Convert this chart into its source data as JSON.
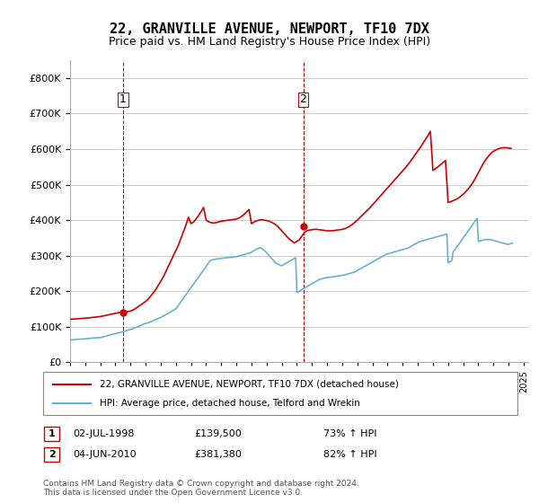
{
  "title": "22, GRANVILLE AVENUE, NEWPORT, TF10 7DX",
  "subtitle": "Price paid vs. HM Land Registry's House Price Index (HPI)",
  "hpi_color": "#6baed6",
  "price_color": "#cc0000",
  "annotation_color": "#cc0000",
  "dashed_color": "#cc0000",
  "background_color": "#ffffff",
  "grid_color": "#cccccc",
  "legend_label_price": "22, GRANVILLE AVENUE, NEWPORT, TF10 7DX (detached house)",
  "legend_label_hpi": "HPI: Average price, detached house, Telford and Wrekin",
  "footer": "Contains HM Land Registry data © Crown copyright and database right 2024.\nThis data is licensed under the Open Government Licence v3.0.",
  "transactions": [
    {
      "num": 1,
      "date": "02-JUL-1998",
      "price": 139500,
      "pct": "73%",
      "direction": "↑",
      "year": 1998.5
    },
    {
      "num": 2,
      "date": "04-JUN-2010",
      "price": 381380,
      "pct": "82%",
      "direction": "↑",
      "year": 2010.42
    }
  ],
  "ylim": [
    0,
    850000
  ],
  "yticks": [
    0,
    100000,
    200000,
    300000,
    400000,
    500000,
    600000,
    700000,
    800000
  ],
  "hpi_data": {
    "years": [
      1995.0,
      1995.08,
      1995.17,
      1995.25,
      1995.33,
      1995.42,
      1995.5,
      1995.58,
      1995.67,
      1995.75,
      1995.83,
      1995.92,
      1996.0,
      1996.08,
      1996.17,
      1996.25,
      1996.33,
      1996.42,
      1996.5,
      1996.58,
      1996.67,
      1996.75,
      1996.83,
      1996.92,
      1997.0,
      1997.08,
      1997.17,
      1997.25,
      1997.33,
      1997.42,
      1997.5,
      1997.58,
      1997.67,
      1997.75,
      1997.83,
      1997.92,
      1998.0,
      1998.08,
      1998.17,
      1998.25,
      1998.33,
      1998.42,
      1998.5,
      1998.58,
      1998.67,
      1998.75,
      1998.83,
      1998.92,
      1999.0,
      1999.08,
      1999.17,
      1999.25,
      1999.33,
      1999.42,
      1999.5,
      1999.58,
      1999.67,
      1999.75,
      1999.83,
      1999.92,
      2000.0,
      2000.08,
      2000.17,
      2000.25,
      2000.33,
      2000.42,
      2000.5,
      2000.58,
      2000.67,
      2000.75,
      2000.83,
      2000.92,
      2001.0,
      2001.08,
      2001.17,
      2001.25,
      2001.33,
      2001.42,
      2001.5,
      2001.58,
      2001.67,
      2001.75,
      2001.83,
      2001.92,
      2002.0,
      2002.08,
      2002.17,
      2002.25,
      2002.33,
      2002.42,
      2002.5,
      2002.58,
      2002.67,
      2002.75,
      2002.83,
      2002.92,
      2003.0,
      2003.08,
      2003.17,
      2003.25,
      2003.33,
      2003.42,
      2003.5,
      2003.58,
      2003.67,
      2003.75,
      2003.83,
      2003.92,
      2004.0,
      2004.08,
      2004.17,
      2004.25,
      2004.33,
      2004.42,
      2004.5,
      2004.58,
      2004.67,
      2004.75,
      2004.83,
      2004.92,
      2005.0,
      2005.08,
      2005.17,
      2005.25,
      2005.33,
      2005.42,
      2005.5,
      2005.58,
      2005.67,
      2005.75,
      2005.83,
      2005.92,
      2006.0,
      2006.08,
      2006.17,
      2006.25,
      2006.33,
      2006.42,
      2006.5,
      2006.58,
      2006.67,
      2006.75,
      2006.83,
      2006.92,
      2007.0,
      2007.08,
      2007.17,
      2007.25,
      2007.33,
      2007.42,
      2007.5,
      2007.58,
      2007.67,
      2007.75,
      2007.83,
      2007.92,
      2008.0,
      2008.08,
      2008.17,
      2008.25,
      2008.33,
      2008.42,
      2008.5,
      2008.58,
      2008.67,
      2008.75,
      2008.83,
      2008.92,
      2009.0,
      2009.08,
      2009.17,
      2009.25,
      2009.33,
      2009.42,
      2009.5,
      2009.58,
      2009.67,
      2009.75,
      2009.83,
      2009.92,
      2010.0,
      2010.08,
      2010.17,
      2010.25,
      2010.33,
      2010.42,
      2010.5,
      2010.58,
      2010.67,
      2010.75,
      2010.83,
      2010.92,
      2011.0,
      2011.08,
      2011.17,
      2011.25,
      2011.33,
      2011.42,
      2011.5,
      2011.58,
      2011.67,
      2011.75,
      2011.83,
      2011.92,
      2012.0,
      2012.08,
      2012.17,
      2012.25,
      2012.33,
      2012.42,
      2012.5,
      2012.58,
      2012.67,
      2012.75,
      2012.83,
      2012.92,
      2013.0,
      2013.08,
      2013.17,
      2013.25,
      2013.33,
      2013.42,
      2013.5,
      2013.58,
      2013.67,
      2013.75,
      2013.83,
      2013.92,
      2014.0,
      2014.08,
      2014.17,
      2014.25,
      2014.33,
      2014.42,
      2014.5,
      2014.58,
      2014.67,
      2014.75,
      2014.83,
      2014.92,
      2015.0,
      2015.08,
      2015.17,
      2015.25,
      2015.33,
      2015.42,
      2015.5,
      2015.58,
      2015.67,
      2015.75,
      2015.83,
      2015.92,
      2016.0,
      2016.08,
      2016.17,
      2016.25,
      2016.33,
      2016.42,
      2016.5,
      2016.58,
      2016.67,
      2016.75,
      2016.83,
      2016.92,
      2017.0,
      2017.08,
      2017.17,
      2017.25,
      2017.33,
      2017.42,
      2017.5,
      2017.58,
      2017.67,
      2017.75,
      2017.83,
      2017.92,
      2018.0,
      2018.08,
      2018.17,
      2018.25,
      2018.33,
      2018.42,
      2018.5,
      2018.58,
      2018.67,
      2018.75,
      2018.83,
      2018.92,
      2019.0,
      2019.08,
      2019.17,
      2019.25,
      2019.33,
      2019.42,
      2019.5,
      2019.58,
      2019.67,
      2019.75,
      2019.83,
      2019.92,
      2020.0,
      2020.08,
      2020.17,
      2020.25,
      2020.33,
      2020.42,
      2020.5,
      2020.58,
      2020.67,
      2020.75,
      2020.83,
      2020.92,
      2021.0,
      2021.08,
      2021.17,
      2021.25,
      2021.33,
      2021.42,
      2021.5,
      2021.58,
      2021.67,
      2021.75,
      2021.83,
      2021.92,
      2022.0,
      2022.08,
      2022.17,
      2022.25,
      2022.33,
      2022.42,
      2022.5,
      2022.58,
      2022.67,
      2022.75,
      2022.83,
      2022.92,
      2023.0,
      2023.08,
      2023.17,
      2023.25,
      2023.33,
      2023.42,
      2023.5,
      2023.58,
      2023.67,
      2023.75,
      2023.83,
      2023.92,
      2024.0,
      2024.08,
      2024.17,
      2024.25
    ],
    "values": [
      62000,
      62500,
      63000,
      63500,
      64000,
      64200,
      64400,
      64600,
      64800,
      65000,
      65200,
      65400,
      65600,
      66000,
      66400,
      66800,
      67200,
      67600,
      68000,
      68200,
      68400,
      68600,
      68800,
      69000,
      69200,
      70000,
      71000,
      72000,
      73000,
      74000,
      75000,
      76000,
      77000,
      78000,
      79000,
      80000,
      80500,
      81000,
      82000,
      83000,
      84000,
      85000,
      86000,
      87000,
      88000,
      89000,
      90000,
      91000,
      92000,
      93000,
      94500,
      96000,
      97500,
      99000,
      100500,
      102000,
      103500,
      105000,
      106500,
      108000,
      109000,
      110000,
      111000,
      112500,
      114000,
      115500,
      117000,
      118500,
      120000,
      121500,
      123000,
      124500,
      126000,
      128000,
      130000,
      132000,
      134000,
      136000,
      138000,
      140000,
      142000,
      144000,
      146000,
      148000,
      150000,
      155000,
      160000,
      165000,
      170000,
      175000,
      180000,
      185000,
      190000,
      195000,
      200000,
      205000,
      210000,
      215000,
      220000,
      225000,
      230000,
      235000,
      240000,
      245000,
      250000,
      255000,
      260000,
      265000,
      270000,
      275000,
      280000,
      285000,
      287000,
      288000,
      289000,
      290000,
      290500,
      291000,
      291500,
      292000,
      292000,
      292500,
      293000,
      293500,
      294000,
      294500,
      295000,
      295000,
      295000,
      295500,
      296000,
      296500,
      297000,
      298000,
      299000,
      300000,
      301000,
      302000,
      303000,
      304000,
      305000,
      306000,
      307000,
      308000,
      310000,
      312000,
      314000,
      316000,
      318000,
      320000,
      322000,
      322000,
      320000,
      318000,
      315000,
      312000,
      308000,
      304000,
      300000,
      296000,
      292000,
      288000,
      284000,
      280000,
      278000,
      276000,
      274000,
      272000,
      272000,
      274000,
      276000,
      278000,
      280000,
      282000,
      284000,
      286000,
      288000,
      290000,
      292000,
      294000,
      196000,
      198000,
      200000,
      202000,
      205000,
      207000,
      209000,
      211000,
      213000,
      215000,
      217000,
      219000,
      221000,
      223000,
      225000,
      227000,
      229000,
      231000,
      233000,
      234000,
      235000,
      236000,
      237000,
      238000,
      238000,
      238500,
      239000,
      239500,
      240000,
      240500,
      241000,
      241500,
      242000,
      242500,
      243000,
      243500,
      244000,
      245000,
      246000,
      247000,
      248000,
      249000,
      250000,
      251000,
      252000,
      253000,
      254000,
      256000,
      258000,
      260000,
      262000,
      264000,
      266000,
      268000,
      270000,
      272000,
      274000,
      276000,
      278000,
      280000,
      282000,
      284000,
      286000,
      288000,
      290000,
      292000,
      294000,
      296000,
      298000,
      300000,
      302000,
      304000,
      305000,
      306000,
      307000,
      308000,
      309000,
      310000,
      311000,
      312000,
      313000,
      314000,
      315000,
      316000,
      317000,
      318000,
      319000,
      320000,
      321000,
      323000,
      325000,
      327000,
      329000,
      331000,
      333000,
      335000,
      337000,
      339000,
      340000,
      341000,
      342000,
      343000,
      344000,
      345000,
      346000,
      347000,
      348000,
      349000,
      350000,
      351000,
      352000,
      353000,
      354000,
      355000,
      356000,
      357000,
      358000,
      359000,
      360000,
      361000,
      280000,
      282000,
      284000,
      286000,
      310000,
      315000,
      320000,
      325000,
      330000,
      335000,
      340000,
      345000,
      350000,
      355000,
      360000,
      365000,
      370000,
      375000,
      380000,
      385000,
      390000,
      395000,
      400000,
      405000,
      340000,
      341000,
      342000,
      343000,
      344000,
      345000,
      345000,
      345000,
      345000,
      345000,
      345000,
      344000,
      343000,
      342000,
      341000,
      340000,
      339000,
      338000,
      337000,
      336000,
      335000,
      334000,
      333000,
      332000,
      332000,
      333000,
      334000,
      335000
    ]
  },
  "price_hpi_data": {
    "years": [
      1995.0,
      1995.17,
      1995.33,
      1995.5,
      1995.67,
      1995.83,
      1996.0,
      1996.17,
      1996.33,
      1996.5,
      1996.67,
      1996.83,
      1997.0,
      1997.17,
      1997.33,
      1997.5,
      1997.67,
      1997.83,
      1998.0,
      1998.17,
      1998.33,
      1998.5,
      1998.67,
      1998.83,
      1999.0,
      1999.17,
      1999.33,
      1999.5,
      1999.67,
      1999.83,
      2000.0,
      2000.17,
      2000.33,
      2000.5,
      2000.67,
      2000.83,
      2001.0,
      2001.17,
      2001.33,
      2001.5,
      2001.67,
      2001.83,
      2002.0,
      2002.17,
      2002.33,
      2002.5,
      2002.67,
      2002.83,
      2003.0,
      2003.17,
      2003.33,
      2003.5,
      2003.67,
      2003.83,
      2004.0,
      2004.17,
      2004.33,
      2004.5,
      2004.67,
      2004.83,
      2005.0,
      2005.17,
      2005.33,
      2005.5,
      2005.67,
      2005.83,
      2006.0,
      2006.17,
      2006.33,
      2006.5,
      2006.67,
      2006.83,
      2007.0,
      2007.17,
      2007.33,
      2007.5,
      2007.67,
      2007.83,
      2008.0,
      2008.17,
      2008.33,
      2008.5,
      2008.67,
      2008.83,
      2009.0,
      2009.17,
      2009.33,
      2009.5,
      2009.67,
      2009.83,
      2010.0,
      2010.17,
      2010.33,
      2010.5,
      2010.67,
      2010.83,
      2011.0,
      2011.17,
      2011.33,
      2011.5,
      2011.67,
      2011.83,
      2012.0,
      2012.17,
      2012.33,
      2012.5,
      2012.67,
      2012.83,
      2013.0,
      2013.17,
      2013.33,
      2013.5,
      2013.67,
      2013.83,
      2014.0,
      2014.17,
      2014.33,
      2014.5,
      2014.67,
      2014.83,
      2015.0,
      2015.17,
      2015.33,
      2015.5,
      2015.67,
      2015.83,
      2016.0,
      2016.17,
      2016.33,
      2016.5,
      2016.67,
      2016.83,
      2017.0,
      2017.17,
      2017.33,
      2017.5,
      2017.67,
      2017.83,
      2018.0,
      2018.17,
      2018.33,
      2018.5,
      2018.67,
      2018.83,
      2019.0,
      2019.17,
      2019.33,
      2019.5,
      2019.67,
      2019.83,
      2020.0,
      2020.17,
      2020.33,
      2020.5,
      2020.67,
      2020.83,
      2021.0,
      2021.17,
      2021.33,
      2021.5,
      2021.67,
      2021.83,
      2022.0,
      2022.17,
      2022.33,
      2022.5,
      2022.67,
      2022.83,
      2023.0,
      2023.17,
      2023.33,
      2023.5,
      2023.67,
      2023.83,
      2024.0,
      2024.17
    ],
    "values": [
      120756,
      121200,
      121700,
      122200,
      122700,
      123200,
      123700,
      124500,
      125300,
      126100,
      126900,
      127700,
      128500,
      130000,
      131500,
      133000,
      134500,
      136000,
      137500,
      139000,
      140500,
      139500,
      141000,
      142500,
      144000,
      147000,
      151000,
      156000,
      161000,
      166000,
      171000,
      178000,
      186000,
      195000,
      205000,
      216000,
      228000,
      240000,
      255000,
      270000,
      285000,
      300000,
      315000,
      330000,
      348000,
      367000,
      387000,
      408000,
      390000,
      395000,
      403000,
      413000,
      424000,
      436000,
      400000,
      395000,
      393000,
      392000,
      393000,
      395000,
      397000,
      398000,
      399000,
      400000,
      401000,
      402000,
      403000,
      406000,
      410000,
      416000,
      423000,
      430000,
      390000,
      395000,
      398000,
      400000,
      401000,
      400000,
      399000,
      397000,
      394000,
      390000,
      385000,
      378000,
      370000,
      362000,
      354000,
      347000,
      341000,
      336000,
      340000,
      345000,
      355000,
      365000,
      370000,
      372000,
      373000,
      374000,
      374000,
      373000,
      372000,
      371000,
      370000,
      370000,
      370000,
      371000,
      372000,
      373000,
      374000,
      376000,
      379000,
      383000,
      388000,
      394000,
      400000,
      407000,
      414000,
      421000,
      428000,
      435000,
      443000,
      451000,
      459000,
      467000,
      475000,
      483000,
      491000,
      499000,
      507000,
      515000,
      523000,
      531000,
      539000,
      547000,
      556000,
      565000,
      575000,
      585000,
      595000,
      605000,
      616000,
      627000,
      638000,
      650000,
      540000,
      545000,
      550000,
      556000,
      562000,
      568000,
      450000,
      452000,
      455000,
      458000,
      462000,
      467000,
      473000,
      480000,
      488000,
      497000,
      508000,
      520000,
      533000,
      547000,
      560000,
      571000,
      580000,
      588000,
      594000,
      598000,
      601000,
      603000,
      604000,
      604000,
      603000,
      602000
    ]
  },
  "xtick_years": [
    1995,
    1996,
    1997,
    1998,
    1999,
    2000,
    2001,
    2002,
    2003,
    2004,
    2005,
    2006,
    2007,
    2008,
    2009,
    2010,
    2011,
    2012,
    2013,
    2014,
    2015,
    2016,
    2017,
    2018,
    2019,
    2020,
    2021,
    2022,
    2023,
    2024,
    2025
  ]
}
